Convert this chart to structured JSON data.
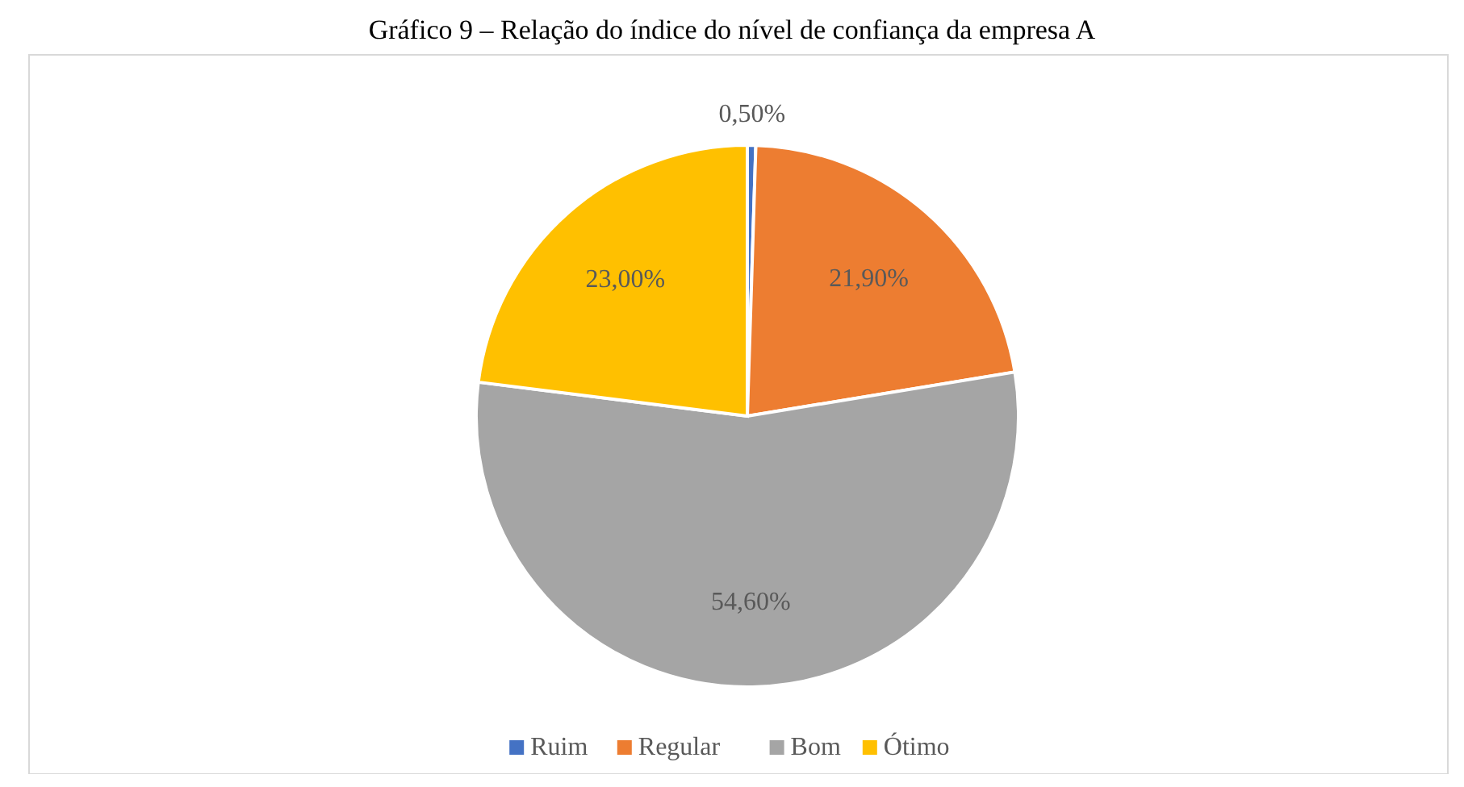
{
  "chart_data": {
    "type": "pie",
    "title": "Gráfico 9 – Relação do índice do nível de confiança da empresa A",
    "categories": [
      "Ruim",
      "Regular",
      "Bom",
      "Ótimo"
    ],
    "values": [
      0.5,
      21.9,
      54.6,
      23.0
    ],
    "colors": [
      "#4472c4",
      "#ed7d31",
      "#a5a5a5",
      "#ffc000"
    ],
    "value_labels": [
      "0,50%",
      "21,90%",
      "54,60%",
      "23,00%"
    ],
    "legend": "bottom"
  }
}
